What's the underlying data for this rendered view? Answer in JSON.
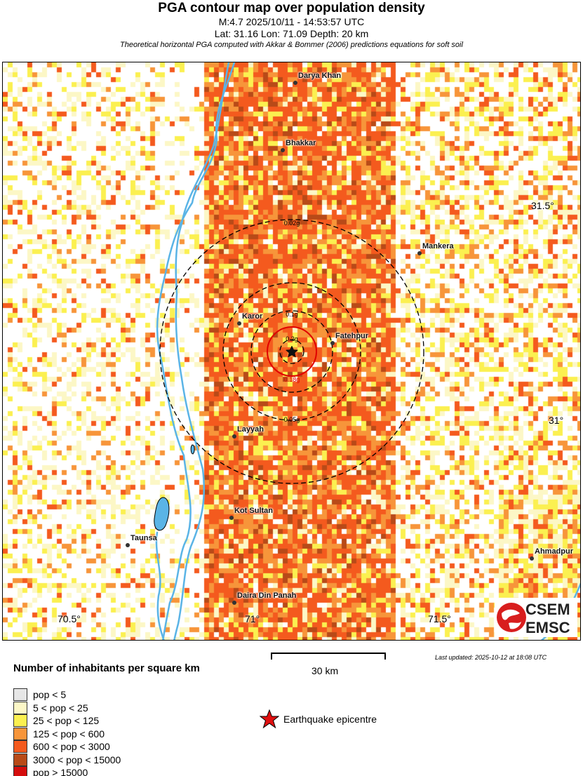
{
  "header": {
    "title": "PGA contour map over population density",
    "event": "M:4.7 2025/10/11 - 14:53:57 UTC",
    "location": "Lat: 31.16 Lon: 71.09 Depth: 20 km",
    "note": "Theoretical horizontal PGA computed with Akkar & Bommer (2006) predictions equations for soft soil"
  },
  "map": {
    "cities": [
      {
        "name": "Darya Khan"
      },
      {
        "name": "Bhakkar"
      },
      {
        "name": "Mankera"
      },
      {
        "name": "Karor"
      },
      {
        "name": "Fatehpur"
      },
      {
        "name": "Layyah"
      },
      {
        "name": "Kot Sultan"
      },
      {
        "name": "Taunsa"
      },
      {
        "name": "Ahmadpur"
      },
      {
        "name": "Daira Din Panah"
      }
    ],
    "contours": [
      {
        "label": "0.02g",
        "color": "#000000",
        "style": "dashed"
      },
      {
        "label": "0.05g",
        "color": "#000000",
        "style": "dashed"
      },
      {
        "label": "0.1g",
        "color": "#000000",
        "style": "dashed"
      },
      {
        "label": "0.18g",
        "color": "#e00000",
        "style": "solid"
      },
      {
        "label": "0.2g",
        "color": "#000000",
        "style": "dashed"
      }
    ],
    "lon_ticks": [
      "70.5°",
      "71°",
      "71.5°"
    ],
    "lat_ticks": [
      "31.5°",
      "31°"
    ],
    "river_color": "#5ab4e6",
    "logo": {
      "top": "CSEM",
      "bottom": "EMSC"
    }
  },
  "legend": {
    "title": "Number of inhabitants per square km",
    "classes": [
      {
        "label": "pop < 5",
        "color": "#e6e6e6"
      },
      {
        "label": "5 < pop < 25",
        "color": "#fcf7c6"
      },
      {
        "label": "25 < pop < 125",
        "color": "#fbf050"
      },
      {
        "label": "125 < pop < 600",
        "color": "#f7953a"
      },
      {
        "label": "600 < pop < 3000",
        "color": "#f45a1e"
      },
      {
        "label": "3000 < pop < 15000",
        "color": "#b84a18"
      },
      {
        "label": "pop > 15000",
        "color": "#d40d0d"
      }
    ],
    "epicentre_label": "Earthquake epicentre",
    "scale_label": "30 km",
    "updated": "Last updated: 2025-10-12 at 18:08 UTC"
  }
}
